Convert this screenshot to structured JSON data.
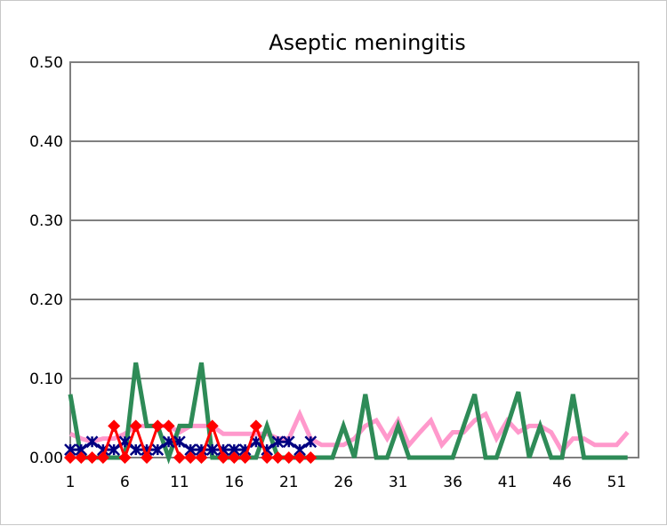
{
  "chart_data": {
    "type": "line",
    "title": "Aseptic meningitis",
    "xlabel": "",
    "ylabel": "",
    "ylim": [
      0,
      0.5
    ],
    "xlim": [
      1,
      53
    ],
    "y_ticks": [
      "0.00",
      "0.10",
      "0.20",
      "0.30",
      "0.40",
      "0.50"
    ],
    "y_tick_values": [
      0,
      0.1,
      0.2,
      0.3,
      0.4,
      0.5
    ],
    "x_ticks": [
      "1",
      "6",
      "11",
      "16",
      "21",
      "26",
      "31",
      "36",
      "41",
      "46",
      "51"
    ],
    "x_tick_values": [
      1,
      6,
      11,
      16,
      21,
      26,
      31,
      36,
      41,
      46,
      51
    ],
    "grid": true,
    "legend": "none",
    "series": [
      {
        "color": "#ff99cc",
        "marker": "none",
        "x": [
          1,
          2,
          3,
          4,
          5,
          6,
          7,
          8,
          9,
          10,
          11,
          12,
          13,
          14,
          15,
          16,
          17,
          18,
          19,
          20,
          21,
          22,
          23,
          24,
          25,
          26,
          27,
          28,
          29,
          30,
          31,
          32,
          33,
          34,
          35,
          36,
          37,
          38,
          39,
          40,
          41,
          42,
          43,
          44,
          45,
          46,
          47,
          48,
          49,
          50,
          51,
          52
        ],
        "values": [
          0.03,
          0.024,
          0.02,
          0.024,
          0.024,
          0.03,
          0.04,
          0.04,
          0.04,
          0.04,
          0.032,
          0.04,
          0.04,
          0.04,
          0.03,
          0.03,
          0.03,
          0.03,
          0.03,
          0.024,
          0.024,
          0.055,
          0.024,
          0.016,
          0.016,
          0.016,
          0.024,
          0.04,
          0.047,
          0.024,
          0.047,
          0.016,
          0.032,
          0.047,
          0.016,
          0.032,
          0.032,
          0.047,
          0.055,
          0.024,
          0.047,
          0.032,
          0.04,
          0.04,
          0.032,
          0.008,
          0.024,
          0.024,
          0.016,
          0.016,
          0.016,
          0.032
        ]
      },
      {
        "color": "#2e8b57",
        "marker": "none",
        "x": [
          1,
          2,
          3,
          4,
          5,
          6,
          7,
          8,
          9,
          10,
          11,
          12,
          13,
          14,
          15,
          16,
          17,
          18,
          19,
          20,
          21,
          22,
          23,
          24,
          25,
          26,
          27,
          28,
          29,
          30,
          31,
          32,
          33,
          34,
          35,
          36,
          37,
          38,
          39,
          40,
          41,
          42,
          43,
          44,
          45,
          46,
          47,
          48,
          49,
          50,
          51,
          52
        ],
        "values": [
          0.08,
          0,
          0,
          0,
          0,
          0,
          0.12,
          0.04,
          0.04,
          0,
          0.04,
          0.04,
          0.12,
          0,
          0,
          0,
          0,
          0,
          0.04,
          0,
          0,
          0,
          0,
          0,
          0,
          0.04,
          0,
          0.08,
          0,
          0,
          0.04,
          0,
          0,
          0,
          0,
          0,
          0.04,
          0.08,
          0,
          0,
          0.04,
          0.083,
          0,
          0.04,
          0,
          0,
          0.08,
          0,
          0,
          0,
          0,
          0
        ]
      },
      {
        "color": "#000080",
        "marker": "star",
        "x": [
          1,
          2,
          3,
          4,
          5,
          6,
          7,
          8,
          9,
          10,
          11,
          12,
          13,
          14,
          15,
          16,
          17,
          18,
          19,
          20,
          21,
          22,
          23
        ],
        "values": [
          0.01,
          0.01,
          0.02,
          0.01,
          0.01,
          0.02,
          0.01,
          0.01,
          0.01,
          0.02,
          0.02,
          0.01,
          0.01,
          0.01,
          0.01,
          0.01,
          0.01,
          0.02,
          0.01,
          0.02,
          0.02,
          0.01,
          0.02
        ]
      },
      {
        "color": "#ff0000",
        "marker": "diamond",
        "x": [
          1,
          2,
          3,
          4,
          5,
          6,
          7,
          8,
          9,
          10,
          11,
          12,
          13,
          14,
          15,
          16,
          17,
          18,
          19,
          20,
          21,
          22,
          23
        ],
        "values": [
          0,
          0,
          0,
          0,
          0.04,
          0,
          0.04,
          0,
          0.04,
          0.04,
          0,
          0,
          0,
          0.04,
          0,
          0,
          0,
          0.04,
          0,
          0,
          0,
          0,
          0
        ]
      }
    ]
  }
}
